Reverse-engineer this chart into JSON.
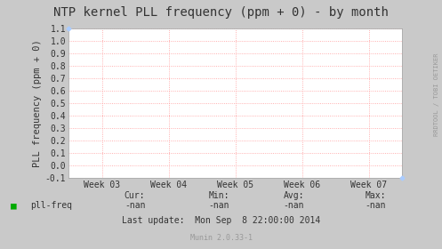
{
  "title": "NTP kernel PLL frequency (ppm + 0) - by month",
  "ylabel": "PLL frequency (ppm + 0)",
  "bg_color": "#c9c9c9",
  "plot_bg_color": "#ffffff",
  "grid_color": "#ff9999",
  "border_color": "#aaaaaa",
  "ylim": [
    -0.1,
    1.1
  ],
  "yticks": [
    -0.1,
    0.0,
    0.1,
    0.2,
    0.3,
    0.4,
    0.5,
    0.6,
    0.7,
    0.8,
    0.9,
    1.0,
    1.1
  ],
  "xtick_labels": [
    "Week 03",
    "Week 04",
    "Week 05",
    "Week 06",
    "Week 07"
  ],
  "xtick_positions": [
    1,
    2,
    3,
    4,
    5
  ],
  "xlim": [
    0.5,
    5.5
  ],
  "legend_label": "pll-freq",
  "legend_color": "#00aa00",
  "cur_label": "Cur:",
  "cur_val": "-nan",
  "min_label": "Min:",
  "min_val": "-nan",
  "avg_label": "Avg:",
  "avg_val": "-nan",
  "max_label": "Max:",
  "max_val": "-nan",
  "last_update": "Last update:  Mon Sep  8 22:00:00 2014",
  "munin_version": "Munin 2.0.33-1",
  "watermark": "RRDTOOL / TOBI OETIKER",
  "title_fontsize": 10,
  "axis_label_fontsize": 7.5,
  "tick_fontsize": 7,
  "stats_fontsize": 7,
  "small_fontsize": 6,
  "watermark_fontsize": 5
}
